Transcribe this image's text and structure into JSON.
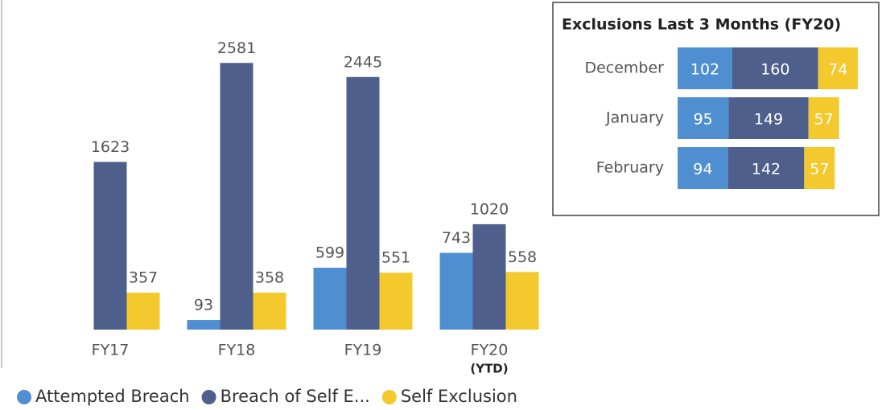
{
  "chart_data": [
    {
      "type": "bar",
      "categories": [
        "FY17",
        "FY18",
        "FY19",
        "FY20"
      ],
      "category_sublabels": [
        null,
        null,
        null,
        "(YTD)"
      ],
      "series": [
        {
          "name": "Attempted Breach",
          "color": "#4f8fd1",
          "values": [
            null,
            93,
            599,
            743
          ]
        },
        {
          "name": "Breach of Self E...",
          "color": "#4e5f8c",
          "values": [
            1623,
            2581,
            2445,
            1020
          ]
        },
        {
          "name": "Self Exclusion",
          "color": "#f3c92d",
          "values": [
            357,
            358,
            551,
            558
          ]
        }
      ],
      "ylim": [
        0,
        2700
      ],
      "legend": "bottom-left"
    },
    {
      "type": "stacked-bar-horizontal",
      "title": "Exclusions Last 3 Months (FY20)",
      "categories": [
        "December",
        "January",
        "February"
      ],
      "series": [
        {
          "name": "Attempted Breach",
          "color": "#4f8fd1",
          "values": [
            102,
            95,
            94
          ]
        },
        {
          "name": "Breach of Self E...",
          "color": "#4e5f8c",
          "values": [
            160,
            149,
            142
          ]
        },
        {
          "name": "Self Exclusion",
          "color": "#f3c92d",
          "values": [
            74,
            57,
            57
          ]
        }
      ],
      "xlim": [
        0,
        375
      ]
    }
  ]
}
